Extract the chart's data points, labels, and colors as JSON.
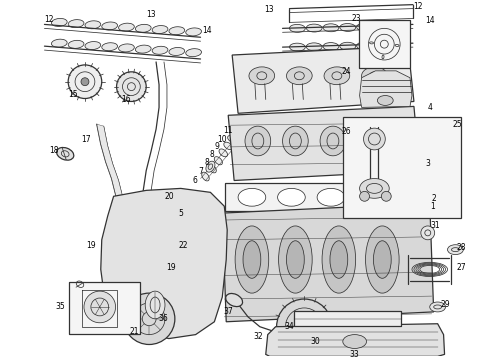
{
  "background_color": "#ffffff",
  "line_color": "#333333",
  "text_color": "#000000",
  "fig_width": 4.9,
  "fig_height": 3.6,
  "dpi": 100
}
